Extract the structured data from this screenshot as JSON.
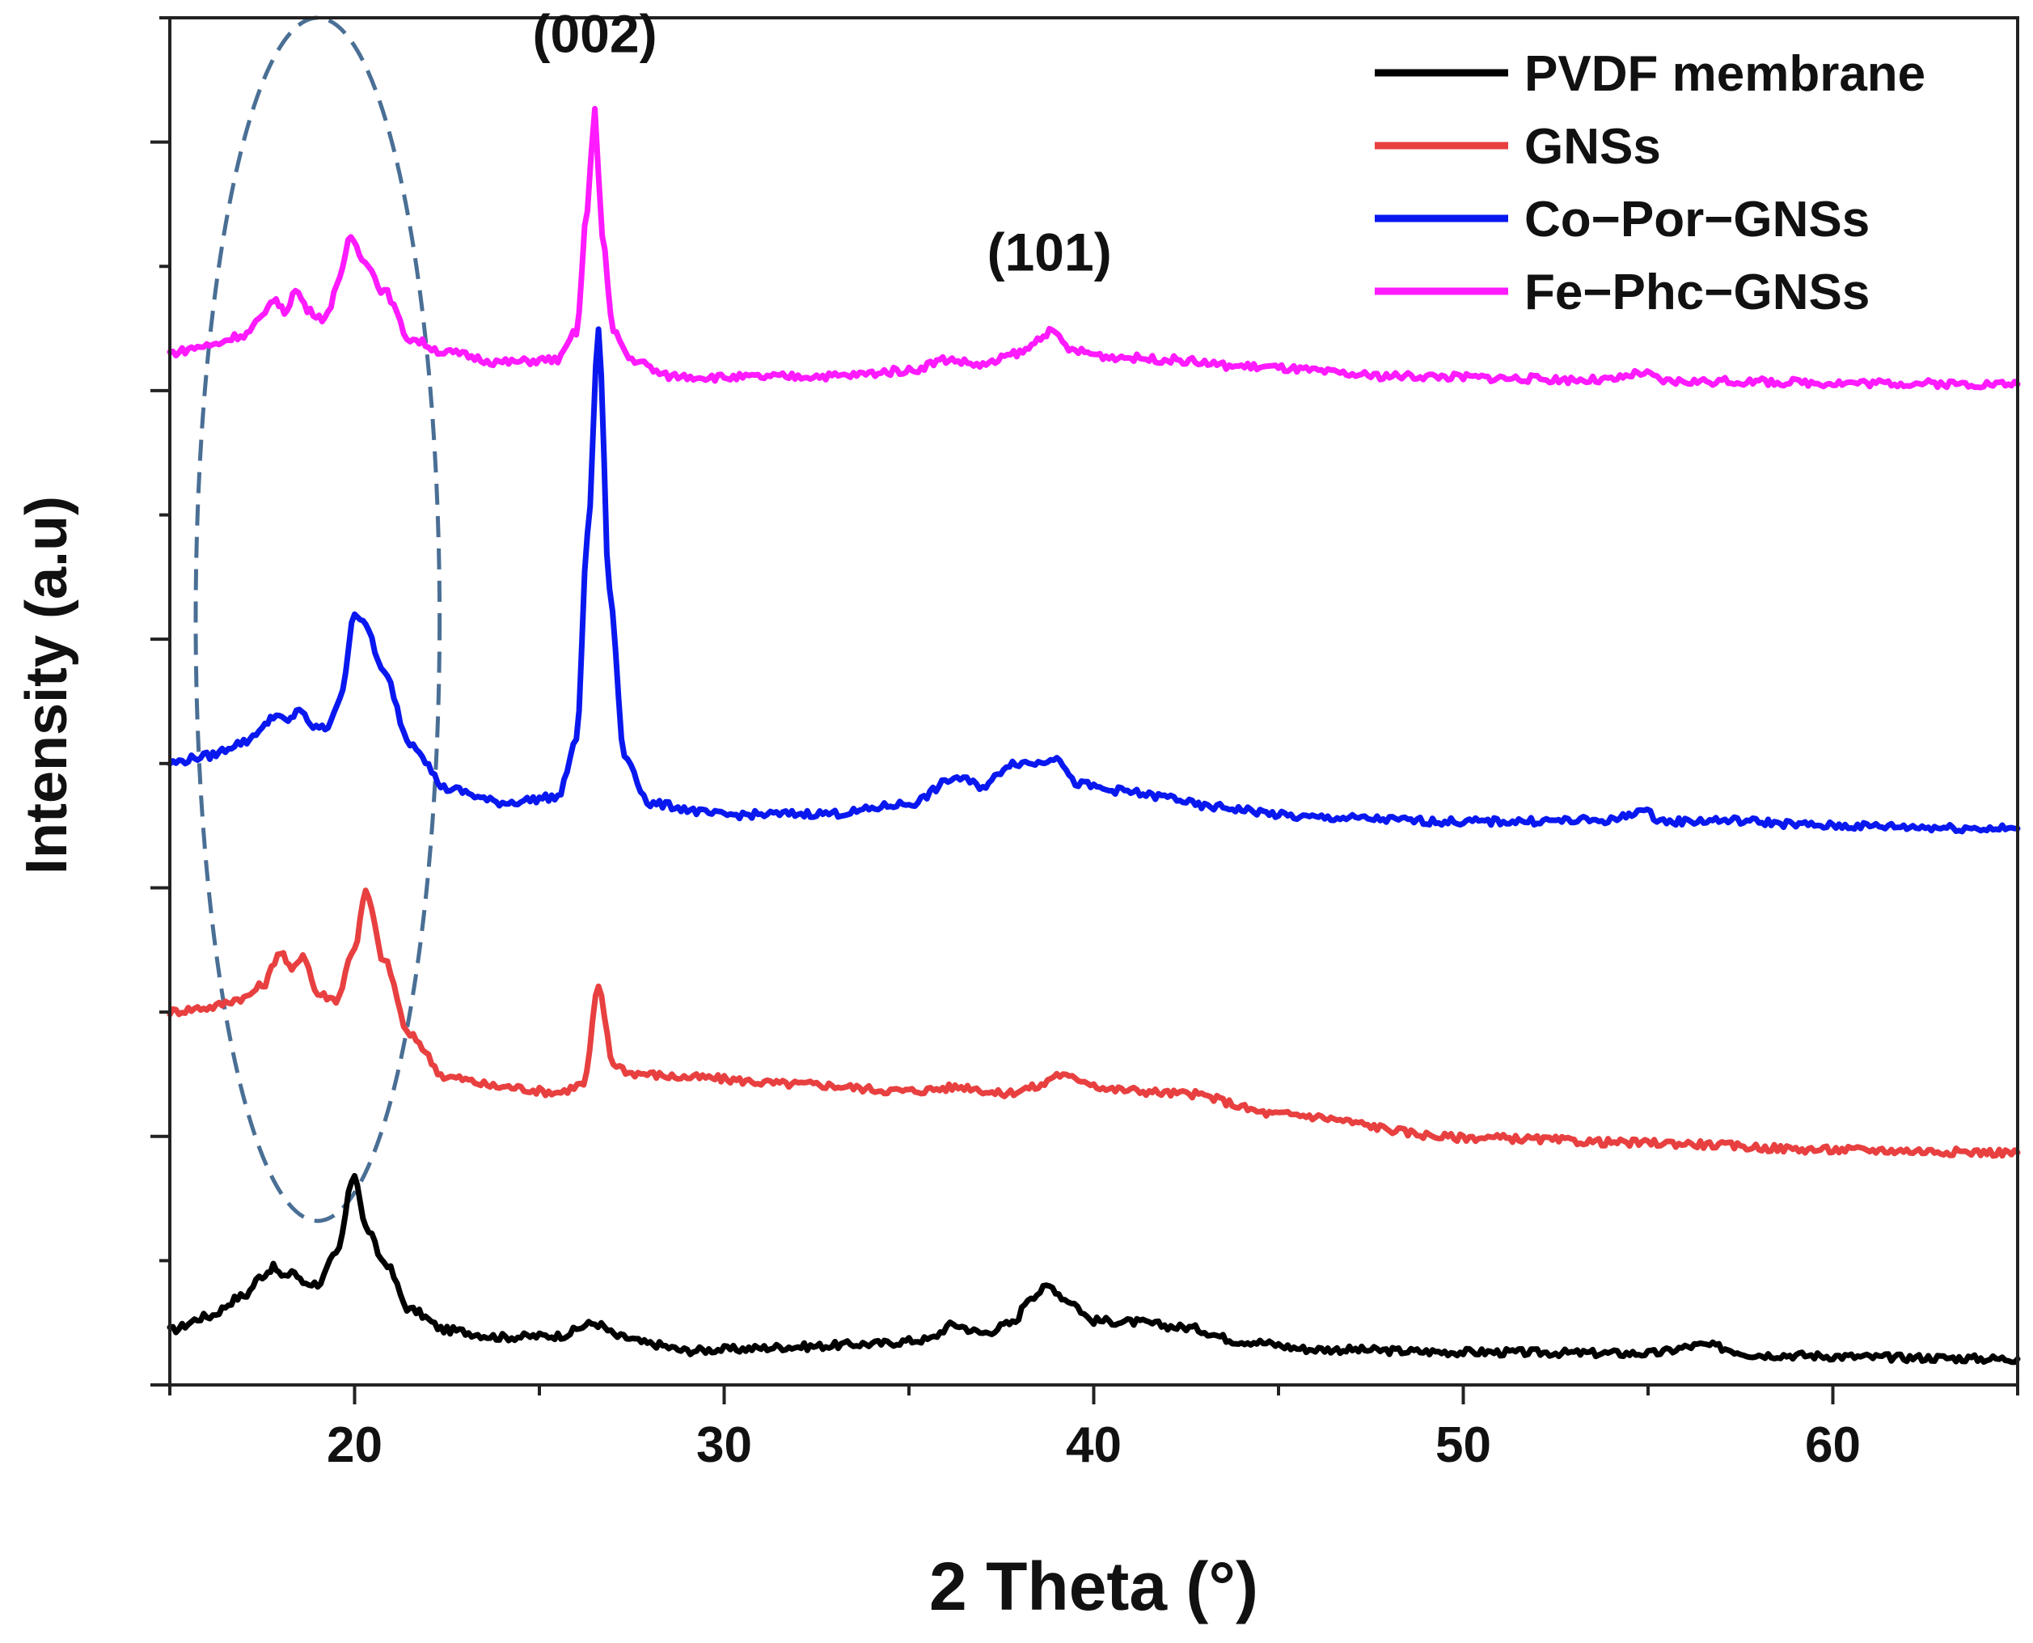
{
  "chart_data": {
    "type": "line",
    "title": "",
    "xlabel": "2 Theta (°)",
    "ylabel": "Intensity (a.u)",
    "xlim": [
      15,
      65
    ],
    "ylim": [
      0,
      100
    ],
    "xticks": [
      20,
      30,
      40,
      50,
      60
    ],
    "xtick_labels": [
      "20",
      "30",
      "40",
      "50",
      "60"
    ],
    "ytick_labels_shown": false,
    "grid": false,
    "legend_position": "top-right",
    "annotations": [
      {
        "text": "(002)",
        "x": 26.5,
        "y": 97.5
      },
      {
        "text": "(101)",
        "x": 38.8,
        "y": 81.5
      }
    ],
    "highlight_ellipse": {
      "center_x": 19.0,
      "center_y": 56.0,
      "width_x": 6.6,
      "height_y": 88.0,
      "color": "#4a6f95",
      "style": "dashed"
    },
    "series": [
      {
        "name": "PVDF membrane",
        "color": "#000000",
        "x": [
          15,
          16,
          17,
          17.5,
          17.8,
          18.1,
          18.3,
          18.6,
          19.0,
          19.5,
          20.0,
          20.3,
          20.8,
          21.5,
          22.5,
          24,
          25.5,
          26.5,
          27.2,
          28,
          29,
          30,
          32,
          34,
          35.5,
          36.2,
          37,
          37.8,
          38.3,
          38.8,
          39.3,
          40,
          41,
          42.5,
          44,
          46,
          50,
          55,
          56.5,
          58,
          62,
          65
        ],
        "y": [
          4.0,
          5.0,
          6.5,
          8.0,
          8.6,
          7.8,
          8.4,
          7.5,
          7.4,
          9.5,
          15.4,
          11.5,
          9.0,
          5.5,
          4.0,
          3.5,
          3.6,
          4.5,
          3.5,
          3.0,
          2.5,
          2.6,
          2.8,
          3.0,
          3.3,
          4.4,
          3.8,
          4.5,
          6.5,
          7.2,
          6.2,
          4.7,
          4.6,
          4.2,
          3.2,
          2.6,
          2.4,
          2.3,
          2.9,
          2.2,
          2.0,
          1.9
        ]
      },
      {
        "name": "GNSs",
        "color": "#e84040",
        "x": [
          15,
          16,
          17,
          17.5,
          18.0,
          18.3,
          18.6,
          19.0,
          19.5,
          20.0,
          20.3,
          20.8,
          21.5,
          22.5,
          24,
          25.5,
          26.2,
          26.6,
          27.0,
          27.5,
          29,
          32,
          35,
          36.5,
          37.5,
          38.5,
          39.0,
          39.5,
          40.5,
          42.5,
          45,
          50,
          55,
          60,
          65
        ],
        "y": [
          27.3,
          27.6,
          28.3,
          29.2,
          31.7,
          30.3,
          31.5,
          28.6,
          28.2,
          32.0,
          36.0,
          31.0,
          25.5,
          22.5,
          21.8,
          21.4,
          22.0,
          29.0,
          23.5,
          22.8,
          22.5,
          22.0,
          21.5,
          21.8,
          21.3,
          21.8,
          22.7,
          22.4,
          21.6,
          21.3,
          19.8,
          18.1,
          17.7,
          17.2,
          17.0
        ]
      },
      {
        "name": "Co−Por−GNSs",
        "color": "#0a18f0",
        "x": [
          15,
          16,
          17,
          17.5,
          17.8,
          18.2,
          18.5,
          18.8,
          19.2,
          19.6,
          20.0,
          20.3,
          20.8,
          21.5,
          22.5,
          24,
          25.5,
          26.0,
          26.3,
          26.6,
          26.9,
          27.3,
          28,
          30,
          33,
          35,
          36.3,
          37,
          37.8,
          38.5,
          39.0,
          39.5,
          40.5,
          42,
          43,
          46,
          50,
          54,
          54.8,
          55.5,
          57,
          60,
          65
        ],
        "y": [
          45.5,
          46.0,
          47.0,
          48.0,
          49.0,
          48.5,
          49.5,
          48.2,
          48.0,
          50.0,
          56.5,
          55.5,
          52.0,
          47.0,
          43.6,
          42.6,
          43.0,
          47.0,
          62.0,
          77.0,
          58.0,
          46.0,
          42.5,
          41.7,
          41.8,
          42.5,
          44.4,
          43.8,
          45.5,
          45.5,
          46.0,
          44.0,
          43.5,
          43.0,
          42.3,
          41.5,
          41.2,
          41.3,
          42.0,
          41.2,
          41.3,
          40.9,
          40.7
        ]
      },
      {
        "name": "Fe−Phc−GNSs",
        "color": "#ff1aff",
        "x": [
          15,
          16,
          17,
          17.5,
          17.8,
          18.1,
          18.4,
          18.8,
          19.2,
          19.6,
          19.9,
          20.2,
          20.8,
          21.5,
          22.5,
          24,
          25.5,
          26.0,
          26.3,
          26.5,
          26.7,
          27.0,
          27.5,
          28.5,
          30,
          33,
          35,
          36,
          37,
          38,
          38.8,
          39.5,
          40.5,
          42,
          44,
          48,
          54,
          54.8,
          55.5,
          57,
          60,
          65
        ],
        "y": [
          75.5,
          76.0,
          76.8,
          78.0,
          79.5,
          78.5,
          80.0,
          78.5,
          78.0,
          81.0,
          84.0,
          82.5,
          80.0,
          76.5,
          75.5,
          74.8,
          75.0,
          77.0,
          86.0,
          93.5,
          84.0,
          77.0,
          75.0,
          73.8,
          73.7,
          73.8,
          74.2,
          75.0,
          74.6,
          75.5,
          77.0,
          75.6,
          75.2,
          75.0,
          74.5,
          73.8,
          73.5,
          74.0,
          73.4,
          73.4,
          73.3,
          73.2
        ]
      }
    ]
  }
}
